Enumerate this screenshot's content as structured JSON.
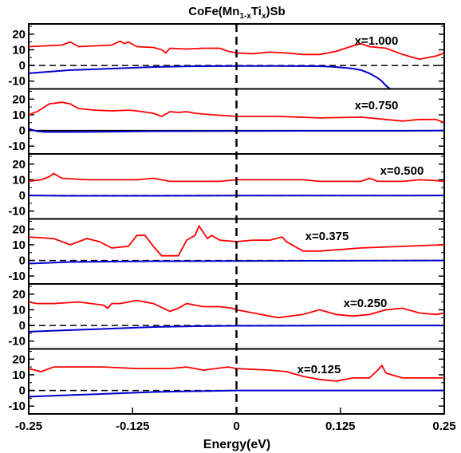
{
  "chart_data": {
    "type": "line",
    "title_main": "CoFe(Mn",
    "title_sub1": "1-x",
    "title_mid": "Ti",
    "title_sub2": "x",
    "title_end": ")Sb",
    "xlabel": "Energy(eV)",
    "ylabel": "",
    "xlim": [
      -0.25,
      0.25
    ],
    "ylim": [
      -15,
      25
    ],
    "x_ticks": [
      -0.25,
      -0.125,
      0,
      0.125,
      0.25
    ],
    "x_tick_labels": [
      "-0.25",
      "-0.125",
      "0",
      "0.125",
      "0.25"
    ],
    "y_ticks": [
      -10,
      0,
      10,
      20
    ],
    "y_tick_labels": [
      "-10",
      "0",
      "10",
      "20"
    ],
    "fermi_level": 0,
    "colors": {
      "red_series": "#ff0000",
      "blue_series": "#0000cc",
      "zero_line": "#000000"
    },
    "panels": [
      {
        "label": "x=1.000",
        "red": {
          "x": [
            -0.25,
            -0.23,
            -0.21,
            -0.2,
            -0.19,
            -0.17,
            -0.15,
            -0.14,
            -0.135,
            -0.13,
            -0.12,
            -0.1,
            -0.09,
            -0.085,
            -0.08,
            -0.06,
            -0.04,
            -0.02,
            -0.01,
            0,
            0.02,
            0.04,
            0.06,
            0.08,
            0.1,
            0.12,
            0.14,
            0.15,
            0.16,
            0.18,
            0.2,
            0.22,
            0.24,
            0.25
          ],
          "y": [
            12,
            12.5,
            13,
            15,
            12,
            12.5,
            13,
            15.5,
            14,
            15,
            12,
            11.5,
            10,
            8,
            11,
            10.5,
            11,
            11,
            9,
            8,
            7.5,
            8.5,
            8,
            7,
            7,
            9,
            12.5,
            14,
            12,
            11,
            7,
            4,
            6,
            8
          ]
        },
        "blue": {
          "x": [
            -0.25,
            -0.2,
            -0.15,
            -0.1,
            -0.05,
            0,
            0.05,
            0.1,
            0.12,
            0.14,
            0.15,
            0.16,
            0.17,
            0.175,
            0.18,
            0.185
          ],
          "y": [
            -5,
            -3,
            -2,
            -1,
            -0.5,
            -0.3,
            -0.3,
            -0.5,
            -1,
            -2,
            -3,
            -5,
            -8,
            -10,
            -13,
            -15
          ]
        },
        "zero_style": "dashed"
      },
      {
        "label": "x=0.750",
        "red": {
          "x": [
            -0.25,
            -0.24,
            -0.225,
            -0.21,
            -0.2,
            -0.19,
            -0.17,
            -0.15,
            -0.13,
            -0.12,
            -0.1,
            -0.09,
            -0.08,
            -0.07,
            -0.06,
            -0.05,
            -0.03,
            0,
            0.05,
            0.1,
            0.15,
            0.2,
            0.22,
            0.24,
            0.25
          ],
          "y": [
            10,
            12,
            17,
            18,
            17,
            14,
            13,
            12.5,
            13,
            12.5,
            11,
            9,
            12,
            11.5,
            12,
            11,
            10,
            9,
            9,
            8,
            8.5,
            6,
            7,
            7,
            5
          ]
        },
        "blue": {
          "x": [
            -0.25,
            -0.24,
            -0.23,
            -0.2,
            -0.15,
            -0.1,
            0,
            0.1,
            0.2,
            0.25
          ],
          "y": [
            1,
            -0.5,
            -1,
            -1,
            -0.8,
            -0.5,
            -0.3,
            -0.2,
            -0.2,
            -0.1
          ]
        },
        "zero_style": "solid"
      },
      {
        "label": "x=0.500",
        "red": {
          "x": [
            -0.25,
            -0.235,
            -0.225,
            -0.22,
            -0.21,
            -0.18,
            -0.15,
            -0.12,
            -0.1,
            -0.08,
            -0.05,
            -0.02,
            0,
            0.04,
            0.08,
            0.1,
            0.13,
            0.15,
            0.16,
            0.17,
            0.2,
            0.22,
            0.24,
            0.25
          ],
          "y": [
            9,
            10,
            12,
            14,
            11,
            10,
            10,
            10,
            11,
            9,
            9,
            9,
            10,
            10,
            10,
            9,
            9,
            9,
            11,
            9,
            9,
            10,
            9.5,
            9
          ]
        },
        "blue": {
          "x": [
            -0.25,
            -0.2,
            -0.1,
            0,
            0.1,
            0.2,
            0.25
          ],
          "y": [
            0,
            -0.2,
            -0.2,
            -0.1,
            -0.1,
            -0.1,
            0
          ]
        },
        "zero_style": "dashed"
      },
      {
        "label": "x=0.375",
        "red": {
          "x": [
            -0.25,
            -0.22,
            -0.2,
            -0.18,
            -0.165,
            -0.15,
            -0.13,
            -0.12,
            -0.11,
            -0.1,
            -0.09,
            -0.07,
            -0.06,
            -0.05,
            -0.045,
            -0.04,
            -0.035,
            -0.03,
            -0.02,
            0,
            0.02,
            0.04,
            0.055,
            0.06,
            0.08,
            0.1,
            0.15,
            0.2,
            0.25
          ],
          "y": [
            15,
            14,
            10,
            14,
            12,
            8,
            9,
            16,
            16,
            9,
            3,
            3,
            13,
            16,
            22,
            18,
            14,
            16,
            13,
            12,
            13,
            13,
            15,
            12,
            6,
            6,
            8,
            9,
            10
          ]
        },
        "blue": {
          "x": [
            -0.25,
            -0.2,
            -0.1,
            0,
            0.1,
            0.2,
            0.25
          ],
          "y": [
            -2,
            -1,
            -0.5,
            -0.3,
            -0.2,
            -0.1,
            0
          ]
        },
        "zero_style": "dashed"
      },
      {
        "label": "x=0.250",
        "red": {
          "x": [
            -0.25,
            -0.24,
            -0.22,
            -0.19,
            -0.16,
            -0.155,
            -0.15,
            -0.14,
            -0.12,
            -0.1,
            -0.08,
            -0.07,
            -0.06,
            -0.04,
            -0.02,
            -0.005,
            0,
            0.02,
            0.05,
            0.08,
            0.1,
            0.12,
            0.14,
            0.16,
            0.18,
            0.2,
            0.22,
            0.24,
            0.25
          ],
          "y": [
            15,
            14,
            14,
            15,
            13,
            11,
            14,
            14,
            16,
            14,
            9,
            11,
            14,
            12,
            12,
            11,
            10,
            8,
            5,
            7,
            10,
            7,
            6,
            7,
            10,
            11,
            8,
            7,
            8
          ]
        },
        "blue": {
          "x": [
            -0.25,
            -0.2,
            -0.15,
            -0.1,
            -0.05,
            0,
            0.1,
            0.2,
            0.25
          ],
          "y": [
            -4,
            -3,
            -2,
            -1,
            -0.5,
            -0.2,
            -0.1,
            0,
            0
          ]
        },
        "zero_style": "dashed"
      },
      {
        "label": "x=0.125",
        "red": {
          "x": [
            -0.25,
            -0.235,
            -0.22,
            -0.2,
            -0.16,
            -0.12,
            -0.1,
            -0.08,
            -0.06,
            -0.04,
            -0.01,
            0,
            0.04,
            0.06,
            0.08,
            0.1,
            0.12,
            0.14,
            0.16,
            0.17,
            0.175,
            0.18,
            0.2,
            0.22,
            0.25
          ],
          "y": [
            14,
            12,
            15,
            15,
            15,
            14,
            14,
            14,
            15,
            13,
            15,
            14,
            13,
            12,
            9,
            7,
            6,
            8,
            8,
            13,
            16,
            11,
            8,
            8,
            8
          ]
        },
        "blue": {
          "x": [
            -0.25,
            -0.2,
            -0.15,
            -0.1,
            -0.05,
            -0.02,
            0,
            0.1,
            0.2,
            0.25
          ],
          "y": [
            -4,
            -3,
            -2,
            -1,
            -0.5,
            -0.2,
            0,
            0,
            0,
            0
          ]
        },
        "zero_style": "dashed"
      }
    ]
  }
}
